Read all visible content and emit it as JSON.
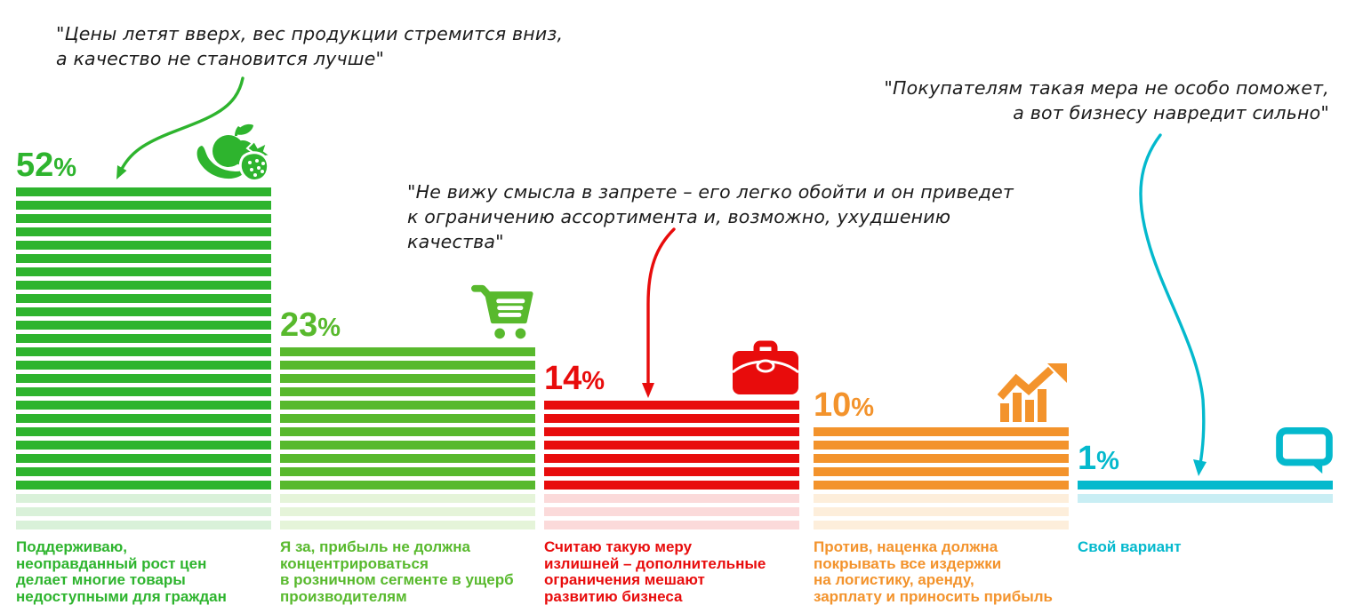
{
  "colors": {
    "background": "#ffffff",
    "quote_text": "#1c1c1c"
  },
  "chart_data": {
    "type": "bar",
    "title": "",
    "unit": "%",
    "categories": [
      "Поддерживаю, неоправданный рост цен делает многие товары недоступными для граждан",
      "Я за, прибыль не должна концентрироваться в розничном сегменте в ущерб производителям",
      "Считаю такую меру излишней – дополнительные ограничения мешают развитию бизнеса",
      "Против, наценка должна покрывать все издержки на логистику, аренду, зарплату и приносить прибыль",
      "Свой вариант"
    ],
    "values": [
      52,
      23,
      14,
      10,
      1
    ],
    "bars": [
      {
        "value": 52,
        "caption": "Поддерживаю,\nнеоправданный рост цен\nделает многие товары\nнедоступными для граждан",
        "color": "#2eb42e",
        "pale_color": "#d9f1d9",
        "icon": "fruits-icon",
        "solid_stripes": 23,
        "pale_stripes": 3
      },
      {
        "value": 23,
        "caption": "Я за, прибыль не должна\nконцентрироваться\nв розничном сегменте в ущерб\nпроизводителям",
        "color": "#58b92d",
        "pale_color": "#e5f4d9",
        "icon": "shopping-cart-icon",
        "solid_stripes": 11,
        "pale_stripes": 3
      },
      {
        "value": 14,
        "caption": "Считаю такую меру\nизлишней – дополнительные\nограничения мешают\nразвитию бизнеса",
        "color": "#e80c0c",
        "pale_color": "#fbdada",
        "icon": "briefcase-icon",
        "solid_stripes": 7,
        "pale_stripes": 3
      },
      {
        "value": 10,
        "caption": "Против, наценка должна\nпокрывать все издержки\nна логистику, аренду,\nзарплату и приносить прибыль",
        "color": "#f3932c",
        "pale_color": "#fdeedb",
        "icon": "growth-chart-icon",
        "solid_stripes": 5,
        "pale_stripes": 3
      },
      {
        "value": 1,
        "caption": "Свой вариант",
        "color": "#04b9cd",
        "pale_color": "#c9eef4",
        "icon": "speech-bubble-icon",
        "solid_stripes": 1,
        "pale_stripes": 1
      }
    ],
    "legend": "none",
    "grid": false,
    "axes_visible": false
  },
  "annotations": [
    {
      "text": "\"Цены летят вверх, вес продукции стремится вниз,\nа качество не становится лучше\"",
      "arrow_color": "#2eb42e",
      "points_to": "bar 52%"
    },
    {
      "text": "\"Не вижу смысла в запрете – его легко обойти и он приведет\nк ограничению ассортимента и, возможно, ухудшению\nкачества\"",
      "arrow_color": "#e80c0c",
      "points_to": "bar 14%"
    },
    {
      "text": "\"Покупателям такая мера не особо поможет,\nа вот бизнесу навредит сильно\"",
      "arrow_color": "#04b9cd",
      "points_to": "bar 1%"
    }
  ]
}
